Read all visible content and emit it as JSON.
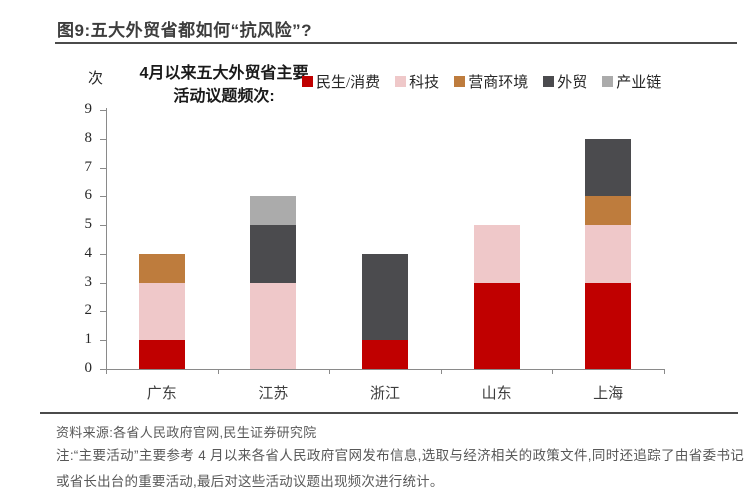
{
  "header": {
    "title": "图9:五大外贸省都如何“抗风险”?"
  },
  "chart_data": {
    "type": "bar",
    "stacked": true,
    "title": "4月以来五大外贸省主要活动议题频次:",
    "unit": "次",
    "categories": [
      "广东",
      "江苏",
      "浙江",
      "山东",
      "上海"
    ],
    "series": [
      {
        "name": "民生/消费",
        "color": "#C00000",
        "values": [
          1,
          0,
          1,
          3,
          3
        ]
      },
      {
        "name": "科技",
        "color": "#EFC8C9",
        "values": [
          2,
          3,
          0,
          2,
          2
        ]
      },
      {
        "name": "营商环境",
        "color": "#BE7C3D",
        "values": [
          1,
          0,
          0,
          0,
          1
        ]
      },
      {
        "name": "外贸",
        "color": "#4B4B4E",
        "values": [
          0,
          2,
          3,
          0,
          2
        ]
      },
      {
        "name": "产业链",
        "color": "#ABABAB",
        "values": [
          0,
          1,
          0,
          0,
          0
        ]
      }
    ],
    "totals": [
      4,
      6,
      4,
      5,
      8
    ],
    "ylim": [
      0,
      9
    ],
    "ytick_step": 1,
    "grid": false,
    "legend_position": "top-right"
  },
  "footer": {
    "source": "资料来源:各省人民政府官网,民生证券研究院",
    "note": "注:“主要活动”主要参考 4 月以来各省人民政府官网发布信息,选取与经济相关的政策文件,同时还追踪了由省委书记或省长出台的重要活动,最后对这些活动议题出现频次进行统计。"
  }
}
